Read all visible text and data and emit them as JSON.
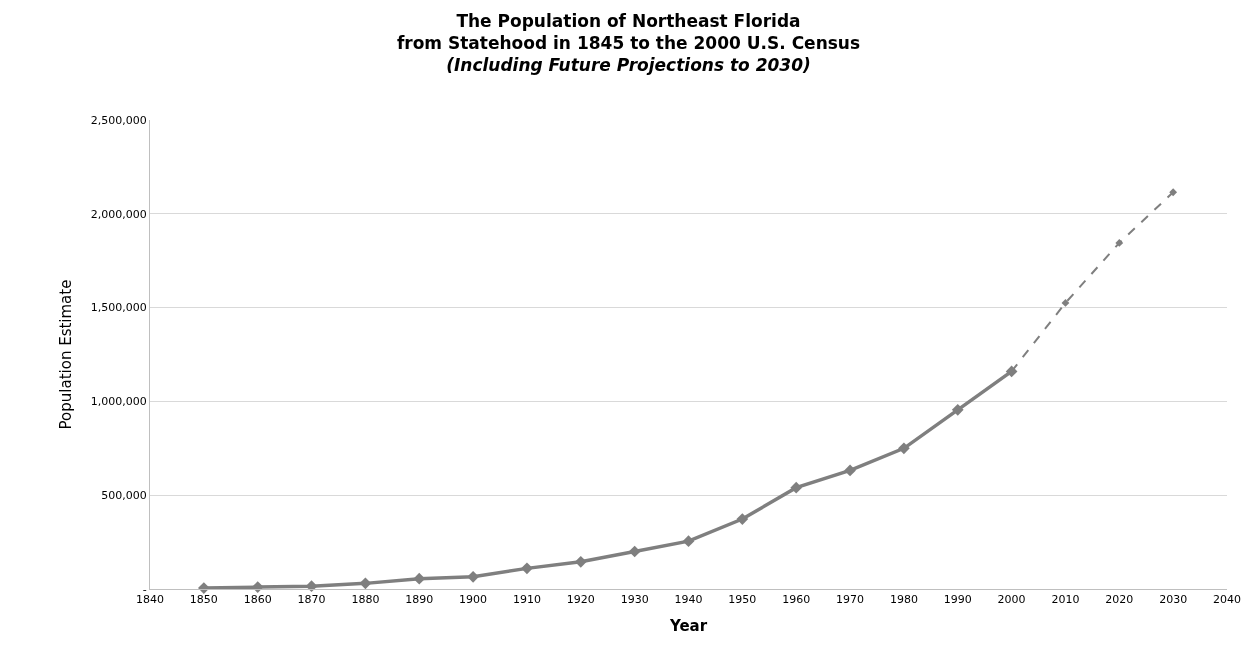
{
  "chart_data": {
    "type": "line",
    "title": "The Population of Northeast Florida\nfrom Statehood in 1845 to the 2000 U.S. Census",
    "subtitle": "(Including Future Projections to 2030)",
    "xlabel": "Year",
    "ylabel": "Population Estimate",
    "series": [
      {
        "x": [
          1850,
          1860,
          1870,
          1880,
          1890,
          1900,
          1910,
          1920,
          1930,
          1940,
          1950,
          1960,
          1970,
          1980,
          1990,
          2000
        ],
        "values": [
          5000,
          10000,
          15000,
          30000,
          55000,
          65000,
          110000,
          145000,
          200000,
          255000,
          373000,
          540000,
          632000,
          750000,
          955000,
          1160000
        ],
        "color": "#7f7f7f",
        "line_style": "solid"
      },
      {
        "x": [
          2000,
          2010,
          2020,
          2030
        ],
        "values": [
          1160000,
          1525000,
          1845000,
          2115000
        ],
        "color": "#7f7f7f",
        "line_style": "dashed"
      }
    ],
    "xlim": [
      1840,
      2040
    ],
    "xticks": [
      1840,
      1850,
      1860,
      1870,
      1880,
      1890,
      1900,
      1910,
      1920,
      1930,
      1940,
      1950,
      1960,
      1970,
      1980,
      1990,
      2000,
      2010,
      2020,
      2030,
      2040
    ],
    "ylim": [
      0,
      2500000
    ],
    "yticks": [
      {
        "value": 0,
        "label": "-"
      },
      {
        "value": 500000,
        "label": "500,000"
      },
      {
        "value": 1000000,
        "label": "1,000,000"
      },
      {
        "value": 1500000,
        "label": "1,500,000"
      },
      {
        "value": 2000000,
        "label": "2,000,000"
      },
      {
        "value": 2500000,
        "label": "2,500,000"
      }
    ],
    "grid": "y",
    "marker": "diamond"
  }
}
